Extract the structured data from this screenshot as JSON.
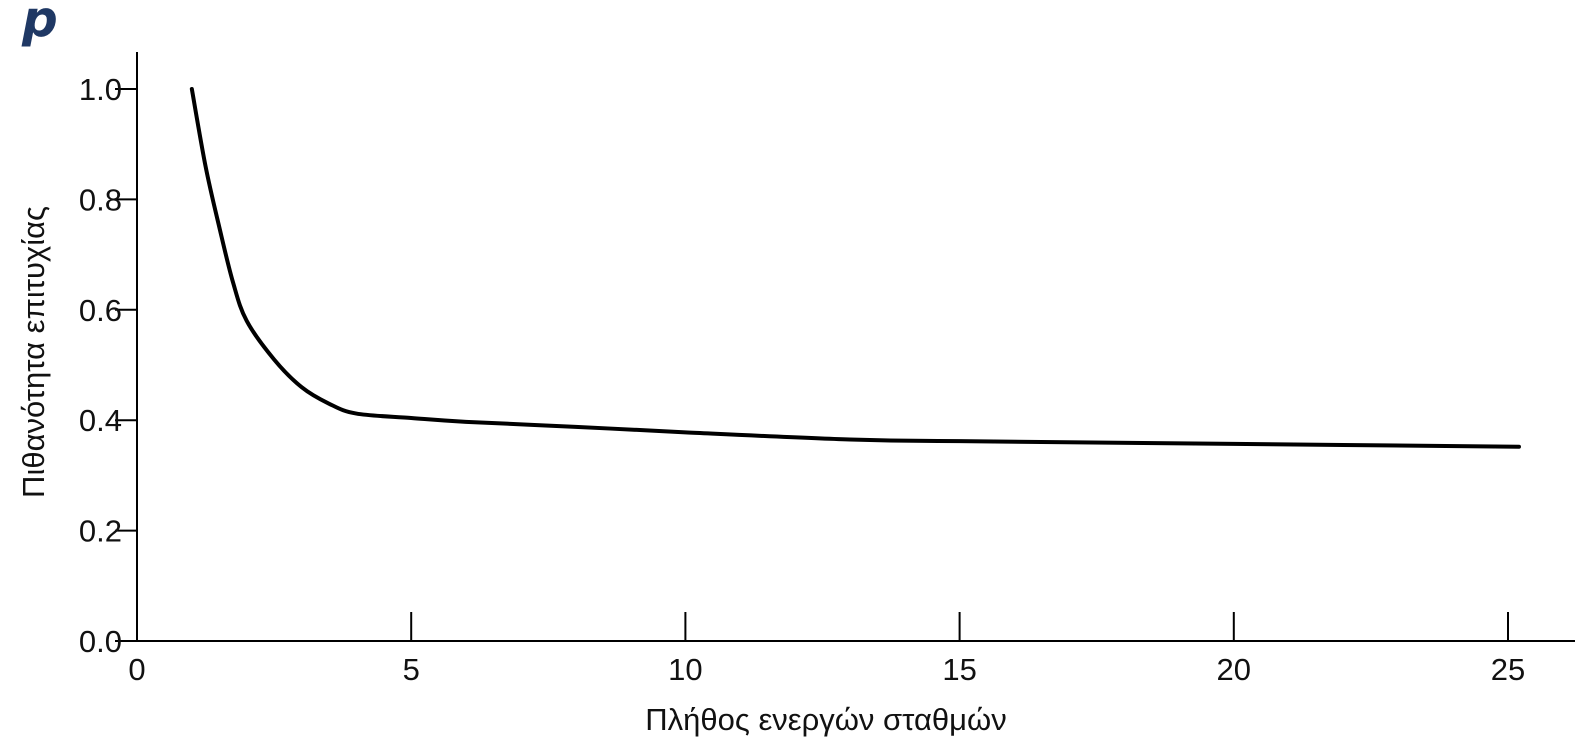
{
  "corner_label": "p",
  "chart_data": {
    "type": "line",
    "xlabel": "Πλήθος ενεργών σταθμών",
    "ylabel": "Πιθανότητα επιτυχίας",
    "xlim": [
      0,
      26
    ],
    "ylim": [
      0,
      1.07
    ],
    "x_ticks": [
      0,
      5,
      10,
      15,
      20,
      25
    ],
    "x_tick_labels": [
      "0",
      "5",
      "10",
      "15",
      "20",
      "25"
    ],
    "y_ticks": [
      0,
      0.2,
      0.4,
      0.6,
      0.8,
      1.0
    ],
    "y_tick_labels": [
      "0.0",
      "0.2",
      "0.4",
      "0.6",
      "0.8",
      "1.0"
    ],
    "grid": false,
    "series": [
      {
        "color": "#000000",
        "x": [
          1,
          1.25,
          1.5,
          1.75,
          2,
          2.5,
          3,
          3.5,
          4,
          5,
          6,
          8,
          10,
          13,
          15,
          20,
          25.2
        ],
        "y": [
          1.0,
          0.86,
          0.75,
          0.65,
          0.58,
          0.51,
          0.46,
          0.43,
          0.412,
          0.404,
          0.397,
          0.388,
          0.378,
          0.365,
          0.362,
          0.357,
          0.352
        ]
      }
    ]
  }
}
